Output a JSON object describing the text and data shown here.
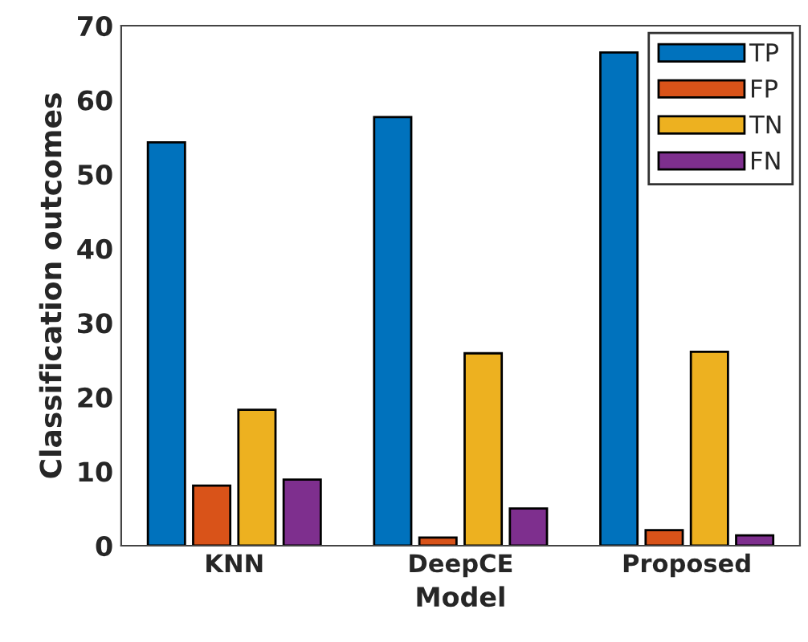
{
  "chart_data": {
    "type": "bar",
    "xlabel": "Model",
    "ylabel": "Classification outcomes",
    "categories": [
      "KNN",
      "DeepCE",
      "Proposed"
    ],
    "series": [
      {
        "name": "TP",
        "color": "#0072bd",
        "values": [
          54.3,
          57.7,
          66.4
        ]
      },
      {
        "name": "FP",
        "color": "#d95319",
        "values": [
          8.1,
          1.1,
          2.1
        ]
      },
      {
        "name": "TN",
        "color": "#edb120",
        "values": [
          18.3,
          25.9,
          26.1
        ]
      },
      {
        "name": "FN",
        "color": "#7e2f8e",
        "values": [
          8.9,
          5,
          1.4
        ]
      }
    ],
    "ylim": [
      0,
      70
    ],
    "yticks": [
      0,
      10,
      20,
      30,
      40,
      50,
      60,
      70
    ],
    "grid": false,
    "legend": "top right"
  }
}
